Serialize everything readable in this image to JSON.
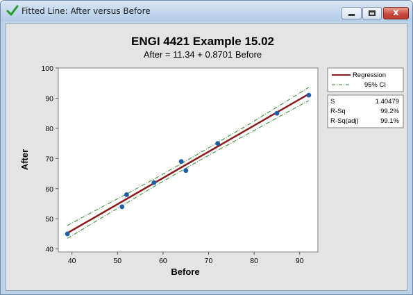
{
  "window": {
    "title": "Fitted Line: After versus Before",
    "buttons": {
      "minimize": "minimize",
      "maximize": "maximize",
      "close": "x"
    }
  },
  "colors": {
    "regression": "#8b1a1a",
    "ci": "#2e8b2e",
    "points": "#1f5fa8"
  },
  "chart_data": {
    "type": "scatter",
    "title": "ENGI 4421 Example 15.02",
    "subtitle": "After = 11.34 + 0.8701 Before",
    "xlabel": "Before",
    "ylabel": "After",
    "xlim": [
      37,
      94
    ],
    "ylim": [
      39,
      100
    ],
    "xticks": [
      40,
      50,
      60,
      70,
      80,
      90
    ],
    "yticks": [
      40,
      50,
      60,
      70,
      80,
      90,
      100
    ],
    "points": [
      {
        "x": 39,
        "y": 45
      },
      {
        "x": 51,
        "y": 54
      },
      {
        "x": 52,
        "y": 58
      },
      {
        "x": 58,
        "y": 62
      },
      {
        "x": 64,
        "y": 69
      },
      {
        "x": 65,
        "y": 66
      },
      {
        "x": 72,
        "y": 75
      },
      {
        "x": 85,
        "y": 85
      },
      {
        "x": 92,
        "y": 91
      }
    ],
    "regression": {
      "intercept": 11.34,
      "slope": 0.8701,
      "x_range": [
        39,
        92
      ]
    },
    "ci_band": {
      "x": [
        39,
        45.6,
        52.3,
        58.9,
        65.5,
        72.1,
        78.8,
        85.4,
        92
      ],
      "lower": [
        43.5,
        49.5,
        55.5,
        61.5,
        67.2,
        72.8,
        78.3,
        83.8,
        89.2
      ],
      "upper": [
        47.8,
        53.1,
        58.5,
        63.9,
        69.6,
        75.4,
        81.3,
        87.4,
        93.6
      ]
    },
    "legend": {
      "position": "right",
      "items": [
        "Regression",
        "95% CI"
      ]
    },
    "stats": [
      {
        "label": "S",
        "value": "1.40479"
      },
      {
        "label": "R-Sq",
        "value": "99.2%"
      },
      {
        "label": "R-Sq(adj)",
        "value": "99.1%"
      }
    ]
  }
}
